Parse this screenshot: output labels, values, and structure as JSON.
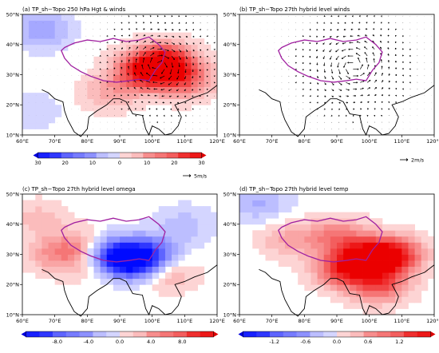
{
  "chart_data": [
    {
      "type": "heatmap",
      "title": "(a) TP_sh−Topo 250 hPa Hgt & winds",
      "xlim": [
        60,
        120
      ],
      "ylim": [
        10,
        50
      ],
      "x_ticks": [
        "60°E",
        "70°E",
        "80°E",
        "90°E",
        "100°E",
        "110°E",
        "120°E"
      ],
      "y_ticks": [
        "10°N",
        "20°N",
        "30°N",
        "40°N",
        "50°N"
      ],
      "colorbar_ticks": [
        "30",
        "20",
        "10",
        "0",
        "10",
        "20",
        "30"
      ],
      "colorbar_range": [
        -30,
        30
      ],
      "vector_reference": "5m/s",
      "field_blobs": [
        {
          "lon": 104,
          "lat": 34,
          "value": 30
        },
        {
          "lon": 97,
          "lat": 31,
          "value": 22
        },
        {
          "lon": 110,
          "lat": 28,
          "value": 15
        },
        {
          "lon": 87,
          "lat": 24,
          "value": 8
        },
        {
          "lon": 66,
          "lat": 45,
          "value": -10
        },
        {
          "lon": 63,
          "lat": 18,
          "value": -4
        }
      ],
      "wind_pattern": {
        "type": "anticyclone",
        "center": [
          102,
          33
        ],
        "strength": 1.0
      }
    },
    {
      "type": "heatmap",
      "title": "(b) TP_sh−Topo 27th hybrid level winds",
      "xlim": [
        60,
        120
      ],
      "ylim": [
        10,
        50
      ],
      "x_ticks": [
        "60°E",
        "70°E",
        "80°E",
        "90°E",
        "100°E",
        "110°E",
        "120°E"
      ],
      "y_ticks": [
        "10°N",
        "20°N",
        "30°N",
        "40°N",
        "50°N"
      ],
      "vector_reference": "2m/s",
      "wind_pattern": {
        "type": "cyclone",
        "center": [
          95,
          33
        ],
        "strength": 1.0
      }
    },
    {
      "type": "heatmap",
      "title": "(c) TP_sh−Topo 27th hybrid level omega",
      "xlim": [
        60,
        120
      ],
      "ylim": [
        10,
        50
      ],
      "x_ticks": [
        "60°E",
        "70°E",
        "80°E",
        "90°E",
        "100°E",
        "110°E",
        "120°E"
      ],
      "y_ticks": [
        "10°N",
        "20°N",
        "30°N",
        "40°N",
        "50°N"
      ],
      "colorbar_ticks": [
        "-8.0",
        "-4.0",
        "0.0",
        "4.0",
        "8.0"
      ],
      "colorbar_range": [
        -10,
        10
      ],
      "field_blobs": [
        {
          "lon": 93,
          "lat": 28,
          "value": -10
        },
        {
          "lon": 86,
          "lat": 30,
          "value": -6
        },
        {
          "lon": 100,
          "lat": 30,
          "value": -5
        },
        {
          "lon": 78,
          "lat": 32,
          "value": 4
        },
        {
          "lon": 70,
          "lat": 30,
          "value": 3
        },
        {
          "lon": 105,
          "lat": 24,
          "value": 3
        },
        {
          "lon": 83,
          "lat": 26,
          "value": 2
        },
        {
          "lon": 65,
          "lat": 42,
          "value": 2
        },
        {
          "lon": 110,
          "lat": 40,
          "value": -2
        }
      ]
    },
    {
      "type": "heatmap",
      "title": "(d) TP_sh−Topo 27th hybrid level temp",
      "xlim": [
        60,
        120
      ],
      "ylim": [
        10,
        50
      ],
      "x_ticks": [
        "60°E",
        "70°E",
        "80°E",
        "90°E",
        "100°E",
        "110°E",
        "120°E"
      ],
      "y_ticks": [
        "10°N",
        "20°N",
        "30°N",
        "40°N",
        "50°N"
      ],
      "colorbar_ticks": [
        "-1.2",
        "-0.6",
        "0.0",
        "0.6",
        "1.2"
      ],
      "colorbar_range": [
        -1.5,
        1.5
      ],
      "field_blobs": [
        {
          "lon": 100,
          "lat": 29,
          "value": 1.4
        },
        {
          "lon": 108,
          "lat": 30,
          "value": 1.1
        },
        {
          "lon": 92,
          "lat": 25,
          "value": 1.0
        },
        {
          "lon": 103,
          "lat": 20,
          "value": 0.9
        },
        {
          "lon": 90,
          "lat": 36,
          "value": 0.7
        },
        {
          "lon": 75,
          "lat": 35,
          "value": 0.4
        },
        {
          "lon": 66,
          "lat": 47,
          "value": -0.4
        }
      ]
    }
  ]
}
